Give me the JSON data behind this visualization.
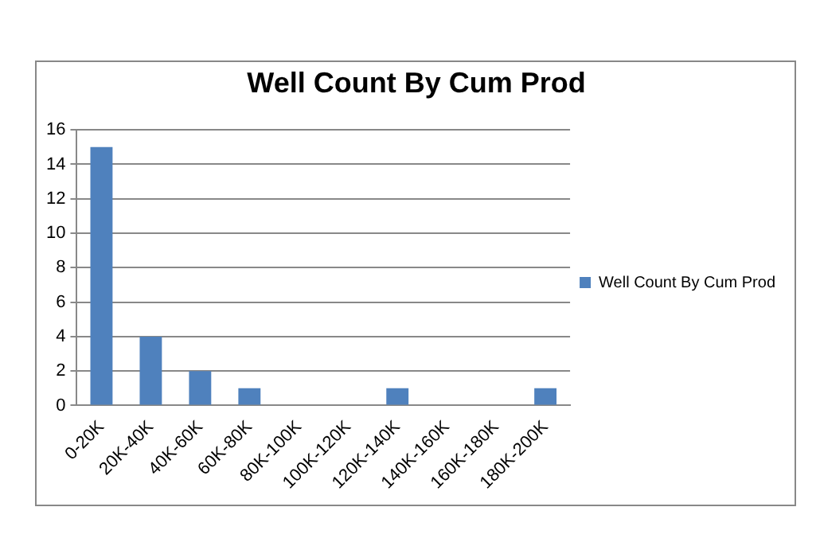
{
  "chart_data": {
    "type": "bar",
    "title": "Well Count By Cum Prod",
    "categories": [
      "0-20K",
      "20K-40K",
      "40K-60K",
      "60K-80K",
      "80K-100K",
      "100K-120K",
      "120K-140K",
      "140K-160K",
      "160K-180K",
      "180K-200K"
    ],
    "series": [
      {
        "name": "Well Count By Cum Prod",
        "color": "#4f81bd",
        "values": [
          15,
          4,
          2,
          1,
          0,
          0,
          1,
          0,
          0,
          1
        ]
      }
    ],
    "ylim": [
      0,
      16
    ],
    "yticks": [
      0,
      2,
      4,
      6,
      8,
      10,
      12,
      14,
      16
    ],
    "grid": "y",
    "legend": "right"
  }
}
